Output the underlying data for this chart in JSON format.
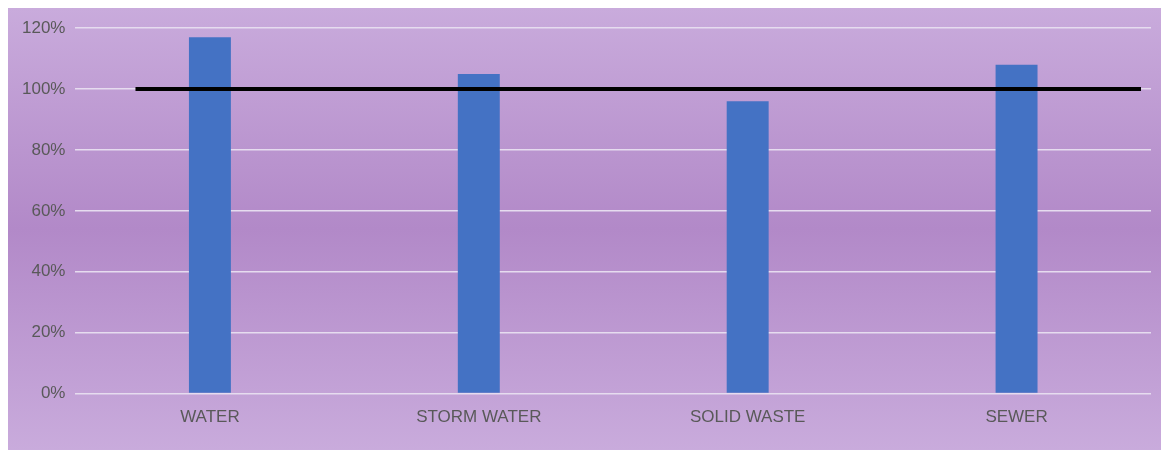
{
  "chart_data": {
    "type": "bar",
    "categories": [
      "WATER",
      "STORM WATER",
      "SOLID WASTE",
      "SEWER"
    ],
    "values": [
      117,
      105,
      96,
      108
    ],
    "color": "#4472c4",
    "ylim": [
      0,
      120
    ],
    "yticks": [
      {
        "value": 0,
        "label": "0%"
      },
      {
        "value": 20,
        "label": "20%"
      },
      {
        "value": 40,
        "label": "40%"
      },
      {
        "value": 60,
        "label": "60%"
      },
      {
        "value": 80,
        "label": "80%"
      },
      {
        "value": 100,
        "label": "100%"
      },
      {
        "value": 120,
        "label": "120%"
      }
    ],
    "grid": "y",
    "legend": false,
    "ref_lines": [
      {
        "axis": "y",
        "value": 100,
        "color": "#000000"
      }
    ]
  }
}
